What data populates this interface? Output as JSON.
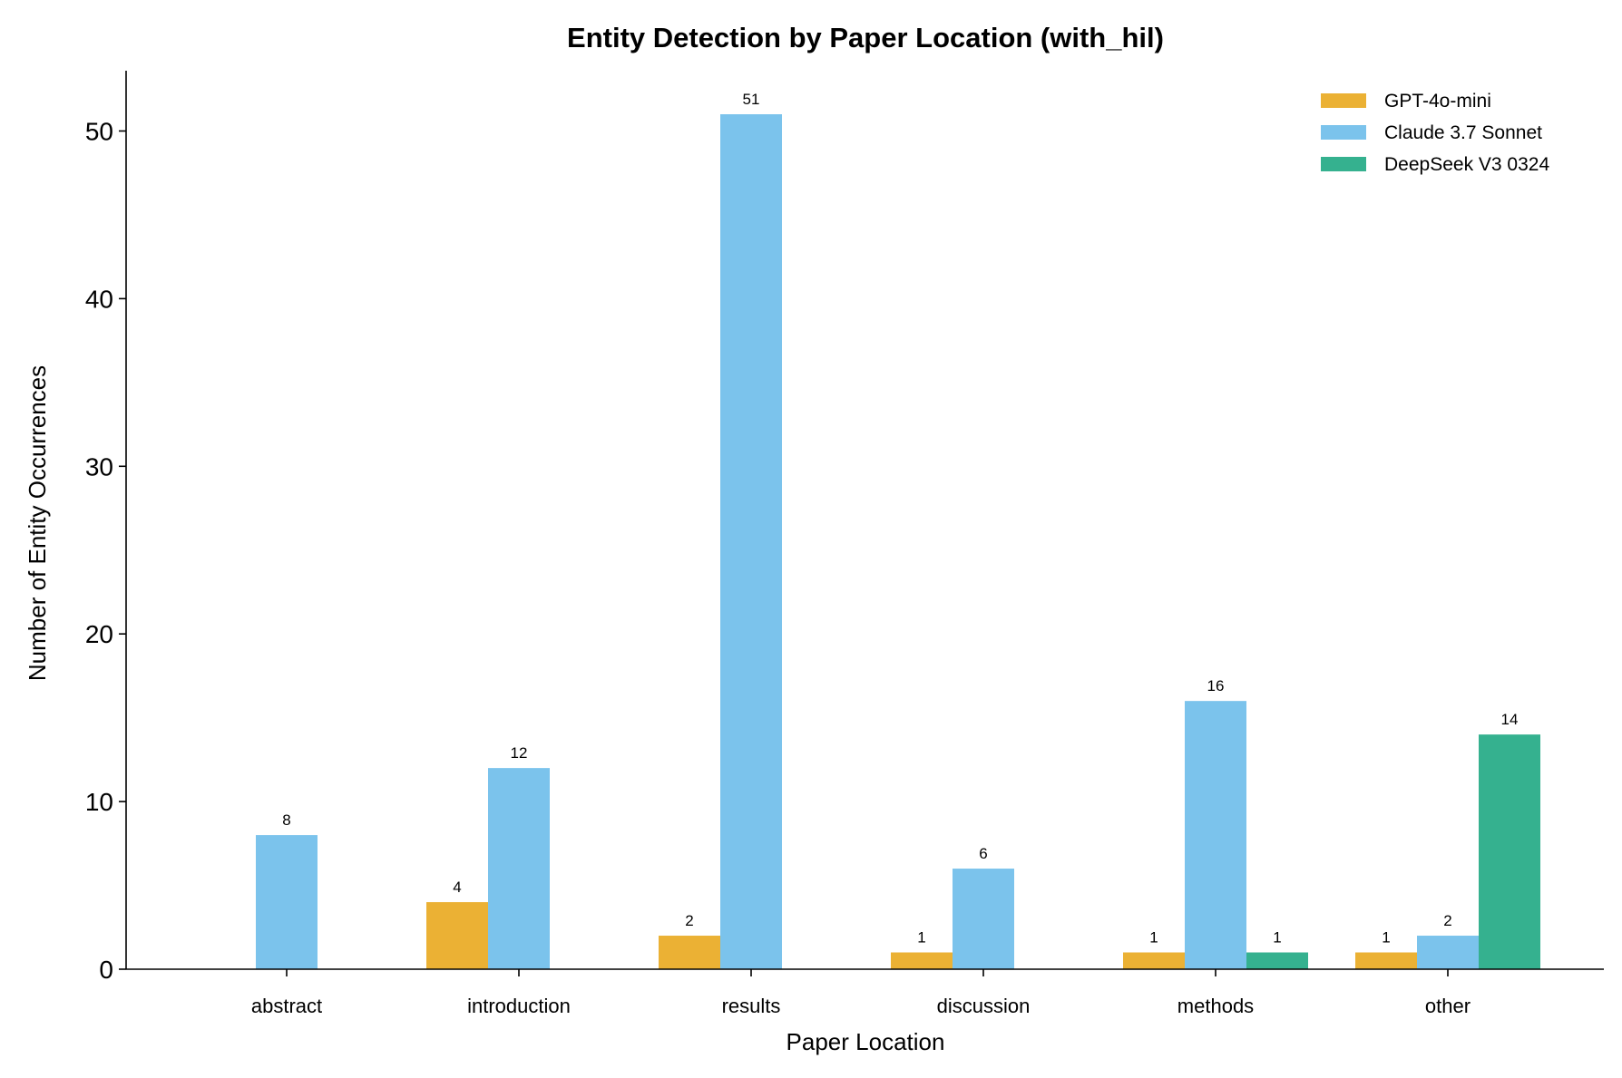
{
  "chart_data": {
    "type": "bar",
    "title": "Entity Detection by Paper Location (with_hil)",
    "xlabel": "Paper Location",
    "ylabel": "Number of Entity Occurrences",
    "categories": [
      "abstract",
      "introduction",
      "results",
      "discussion",
      "methods",
      "other"
    ],
    "series": [
      {
        "name": "GPT-4o-mini",
        "color": "#EBB134",
        "values": [
          0,
          4,
          2,
          1,
          1,
          1
        ]
      },
      {
        "name": "Claude 3.7 Sonnet",
        "color": "#7BC3EC",
        "values": [
          8,
          12,
          51,
          6,
          16,
          2
        ]
      },
      {
        "name": "DeepSeek V3 0324",
        "color": "#35B18F",
        "values": [
          0,
          0,
          0,
          0,
          1,
          14
        ]
      }
    ],
    "yticks": [
      0,
      10,
      20,
      30,
      40,
      50
    ],
    "ylim": [
      0,
      53.6
    ],
    "grid": false,
    "legend": "top-right",
    "data_labels": true
  }
}
